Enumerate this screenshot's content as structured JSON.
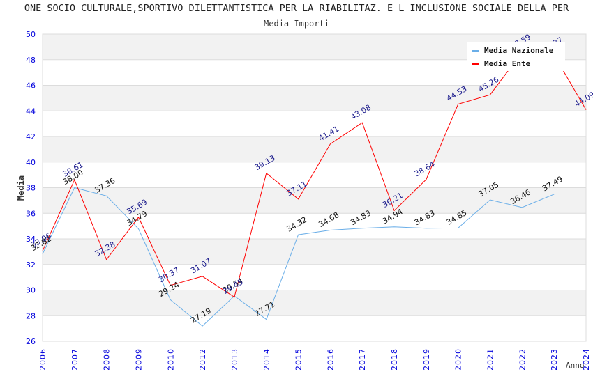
{
  "chart_data": {
    "type": "line",
    "title": "ONE SOCIO CULTURALE,SPORTIVO DILETTANTISTICA PER LA RIABILITAZ. E L INCLUSIONE SOCIALE DELLA PER",
    "subtitle": "Media Importi",
    "xlabel": "Anno",
    "ylabel": "Media",
    "ylim": [
      26,
      50
    ],
    "yticks": [
      "26",
      "28",
      "30",
      "32",
      "34",
      "36",
      "38",
      "40",
      "42",
      "44",
      "46",
      "48",
      "50"
    ],
    "categories": [
      "2006",
      "2007",
      "2008",
      "2009",
      "2010",
      "2012",
      "2013",
      "2014",
      "2015",
      "2016",
      "2017",
      "2018",
      "2019",
      "2020",
      "2021",
      "2022",
      "2023",
      "2024"
    ],
    "grid": true,
    "legend_position": "top-right",
    "series": [
      {
        "name": "Media Nazionale",
        "color": "#6aaee8",
        "label_color": "#111111",
        "values": [
          32.82,
          38.0,
          37.36,
          34.79,
          29.24,
          27.19,
          29.54,
          27.71,
          34.32,
          34.68,
          34.83,
          34.94,
          34.83,
          34.85,
          37.05,
          36.46,
          37.49,
          null
        ],
        "labels": [
          "32.82",
          "38.00",
          "37.36",
          "34.79",
          "29.24",
          "27.19",
          "29.54",
          "27.71",
          "34.32",
          "34.68",
          "34.83",
          "34.94",
          "34.83",
          "34.85",
          "37.05",
          "36.46",
          "37.49",
          ""
        ]
      },
      {
        "name": "Media Ente",
        "color": "#ff0000",
        "label_color": "#1a1a8c",
        "values": [
          33.06,
          38.61,
          32.38,
          35.69,
          30.37,
          31.07,
          29.45,
          39.13,
          37.11,
          41.41,
          43.08,
          36.21,
          38.64,
          44.53,
          45.26,
          48.59,
          48.37,
          44.09
        ],
        "labels": [
          "33.06",
          "38.61",
          "32.38",
          "35.69",
          "30.37",
          "31.07",
          "29.45",
          "39.13",
          "37.11",
          "41.41",
          "43.08",
          "36.21",
          "38.64",
          "44.53",
          "45.26",
          "48.59",
          "48.37",
          "44.09"
        ]
      }
    ]
  }
}
